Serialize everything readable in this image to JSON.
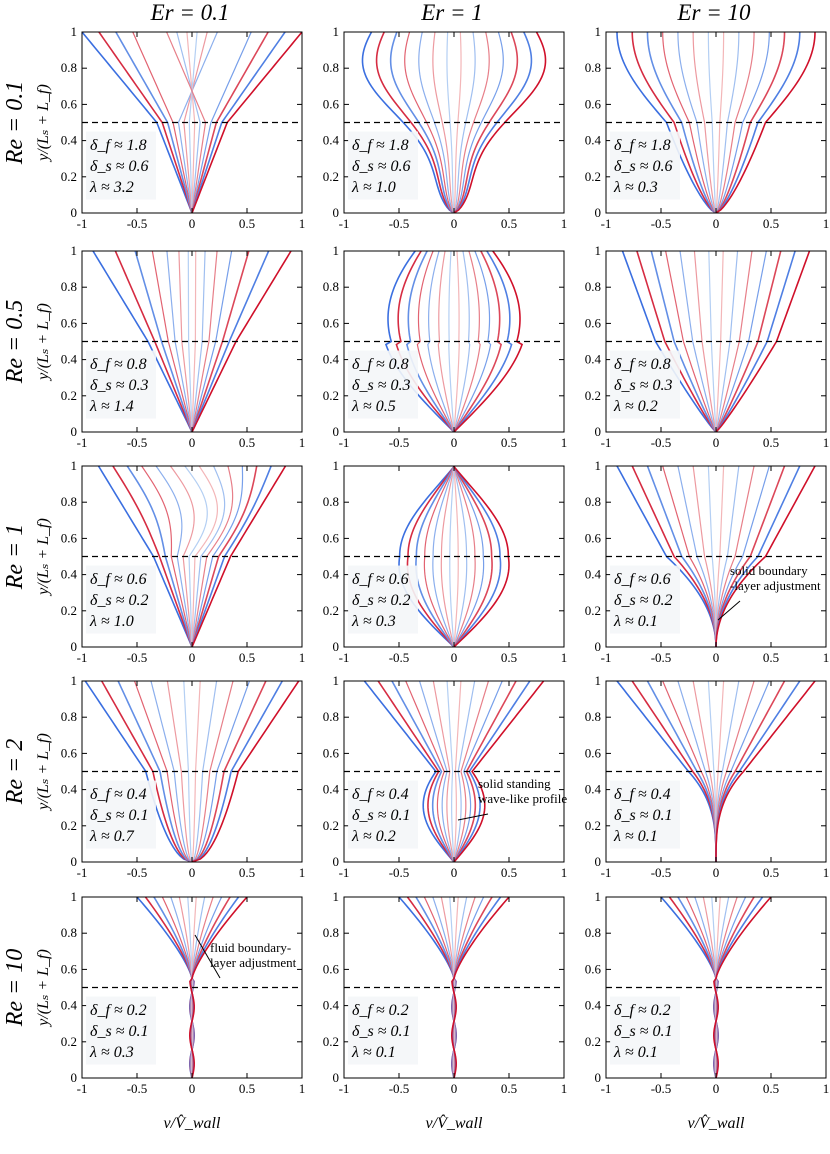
{
  "figure": {
    "column_titles": [
      "Er = 0.1",
      "Er = 1",
      "Er = 10"
    ],
    "row_titles": [
      "Re = 0.1",
      "Re = 0.5",
      "Re = 1",
      "Re = 2",
      "Re = 10"
    ],
    "ylabel": "y/(Lₛ + L_f)",
    "xlabel": "v/V̂_wall",
    "xticks": [
      "-1",
      "-0.5",
      "0",
      "0.5",
      "1"
    ],
    "yticks": [
      "0",
      "0.2",
      "0.4",
      "0.6",
      "0.8",
      "1"
    ],
    "colors": {
      "cool": "#3b6fe0",
      "warm": "#d0102a",
      "dashed_line": "#000000"
    },
    "annotations": [
      {
        "text_lines": [
          "solid boundary",
          "-layer adjustment"
        ]
      },
      {
        "text_lines": [
          "solid standing",
          "wave-like profile"
        ]
      },
      {
        "text_lines": [
          "fluid boundary-",
          "layer adjustment"
        ]
      }
    ]
  },
  "chart_data": {
    "type": "line",
    "description": "Velocity profiles v/V_wall vs y/(Ls+Lf) at multiple phases; 5 rows (Re) x 3 columns (Er)",
    "xlim": [
      -1,
      1
    ],
    "ylim": [
      0,
      1
    ],
    "interface_y": 0.5,
    "panels": [
      {
        "row": 0,
        "col": 0,
        "Re": 0.1,
        "Er": 0.1,
        "delta_f": "1.8",
        "delta_s": "0.6",
        "lambda": "3.2",
        "labels": [
          "δ_f ≈ 1.8",
          "δ_s ≈ 0.6",
          "λ ≈ 3.2"
        ]
      },
      {
        "row": 0,
        "col": 1,
        "Re": 0.1,
        "Er": 1,
        "delta_f": "1.8",
        "delta_s": "0.6",
        "lambda": "1.0",
        "labels": [
          "δ_f ≈ 1.8",
          "δ_s ≈ 0.6",
          "λ ≈ 1.0"
        ]
      },
      {
        "row": 0,
        "col": 2,
        "Re": 0.1,
        "Er": 10,
        "delta_f": "1.8",
        "delta_s": "0.6",
        "lambda": "0.3",
        "labels": [
          "δ_f ≈ 1.8",
          "δ_s ≈ 0.6",
          "λ ≈ 0.3"
        ]
      },
      {
        "row": 1,
        "col": 0,
        "Re": 0.5,
        "Er": 0.1,
        "delta_f": "0.8",
        "delta_s": "0.3",
        "lambda": "1.4",
        "labels": [
          "δ_f ≈ 0.8",
          "δ_s ≈ 0.3",
          "λ ≈ 1.4"
        ]
      },
      {
        "row": 1,
        "col": 1,
        "Re": 0.5,
        "Er": 1,
        "delta_f": "0.8",
        "delta_s": "0.3",
        "lambda": "0.5",
        "labels": [
          "δ_f ≈ 0.8",
          "δ_s ≈ 0.3",
          "λ ≈ 0.5"
        ]
      },
      {
        "row": 1,
        "col": 2,
        "Re": 0.5,
        "Er": 10,
        "delta_f": "0.8",
        "delta_s": "0.3",
        "lambda": "0.2",
        "labels": [
          "δ_f ≈ 0.8",
          "δ_s ≈ 0.3",
          "λ ≈ 0.2"
        ]
      },
      {
        "row": 2,
        "col": 0,
        "Re": 1,
        "Er": 0.1,
        "delta_f": "0.6",
        "delta_s": "0.2",
        "lambda": "1.0",
        "labels": [
          "δ_f ≈ 0.6",
          "δ_s ≈ 0.2",
          "λ ≈ 1.0"
        ]
      },
      {
        "row": 2,
        "col": 1,
        "Re": 1,
        "Er": 1,
        "delta_f": "0.6",
        "delta_s": "0.2",
        "lambda": "0.3",
        "labels": [
          "δ_f ≈ 0.6",
          "δ_s ≈ 0.2",
          "λ ≈ 0.3"
        ]
      },
      {
        "row": 2,
        "col": 2,
        "Re": 1,
        "Er": 10,
        "delta_f": "0.6",
        "delta_s": "0.2",
        "lambda": "0.1",
        "labels": [
          "δ_f ≈ 0.6",
          "δ_s ≈ 0.2",
          "λ ≈ 0.1"
        ]
      },
      {
        "row": 3,
        "col": 0,
        "Re": 2,
        "Er": 0.1,
        "delta_f": "0.4",
        "delta_s": "0.1",
        "lambda": "0.7",
        "labels": [
          "δ_f ≈ 0.4",
          "δ_s ≈ 0.1",
          "λ ≈ 0.7"
        ]
      },
      {
        "row": 3,
        "col": 1,
        "Re": 2,
        "Er": 1,
        "delta_f": "0.4",
        "delta_s": "0.1",
        "lambda": "0.2",
        "labels": [
          "δ_f ≈ 0.4",
          "δ_s ≈ 0.1",
          "λ ≈ 0.2"
        ]
      },
      {
        "row": 3,
        "col": 2,
        "Re": 2,
        "Er": 10,
        "delta_f": "0.4",
        "delta_s": "0.1",
        "lambda": "0.1",
        "labels": [
          "δ_f ≈ 0.4",
          "δ_s ≈ 0.1",
          "λ ≈ 0.1"
        ]
      },
      {
        "row": 4,
        "col": 0,
        "Re": 10,
        "Er": 0.1,
        "delta_f": "0.2",
        "delta_s": "0.1",
        "lambda": "0.3",
        "labels": [
          "δ_f ≈ 0.2",
          "δ_s ≈ 0.1",
          "λ ≈ 0.3"
        ]
      },
      {
        "row": 4,
        "col": 1,
        "Re": 10,
        "Er": 1,
        "delta_f": "0.2",
        "delta_s": "0.1",
        "lambda": "0.1",
        "labels": [
          "δ_f ≈ 0.2",
          "δ_s ≈ 0.1",
          "λ ≈ 0.1"
        ]
      },
      {
        "row": 4,
        "col": 2,
        "Re": 10,
        "Er": 10,
        "delta_f": "0.2",
        "delta_s": "0.1",
        "lambda": "0.1",
        "labels": [
          "δ_f ≈ 0.2",
          "δ_s ≈ 0.1",
          "λ ≈ 0.1"
        ]
      }
    ]
  }
}
